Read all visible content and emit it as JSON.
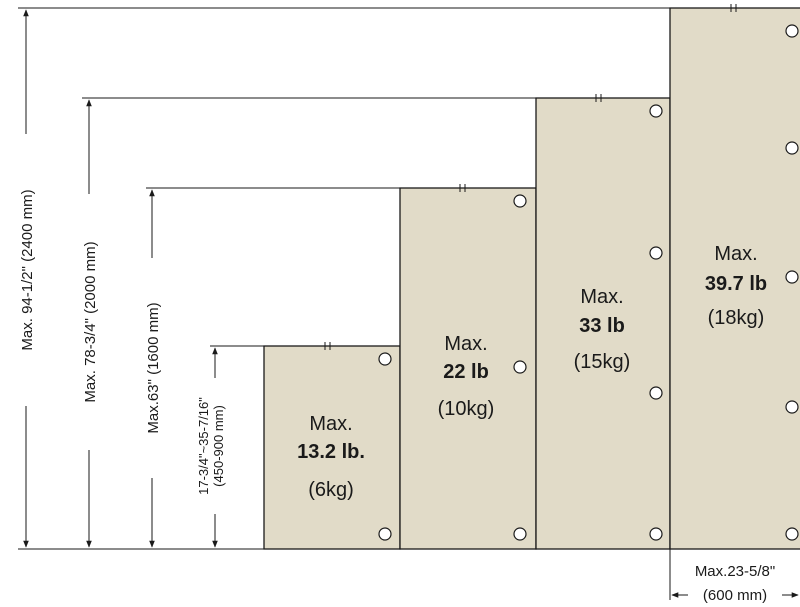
{
  "shelves": [
    {
      "max_label": "Max.",
      "weight": "13.2 lb.",
      "metric": "(6kg)"
    },
    {
      "max_label": "Max.",
      "weight": "22 lb",
      "metric": "(10kg)"
    },
    {
      "max_label": "Max.",
      "weight": "33 lb",
      "metric": "(15kg)"
    },
    {
      "max_label": "Max.",
      "weight": "39.7 lb",
      "metric": "(18kg)"
    }
  ],
  "dimensions": {
    "height_1": "Max. 94-1/2\" (2400 mm)",
    "height_2": "Max. 78-3/4\" (2000 mm)",
    "height_3": "Max.63\" (1600 mm)",
    "height_4_line1": "17-3/4\"~35-7/16\"",
    "height_4_line2": "(450-900 mm)",
    "width_line1": "Max.23-5/8\"",
    "width_line2": "(600 mm)"
  },
  "colors": {
    "panel": "#e1dbc8",
    "line": "#1a1a1a"
  }
}
